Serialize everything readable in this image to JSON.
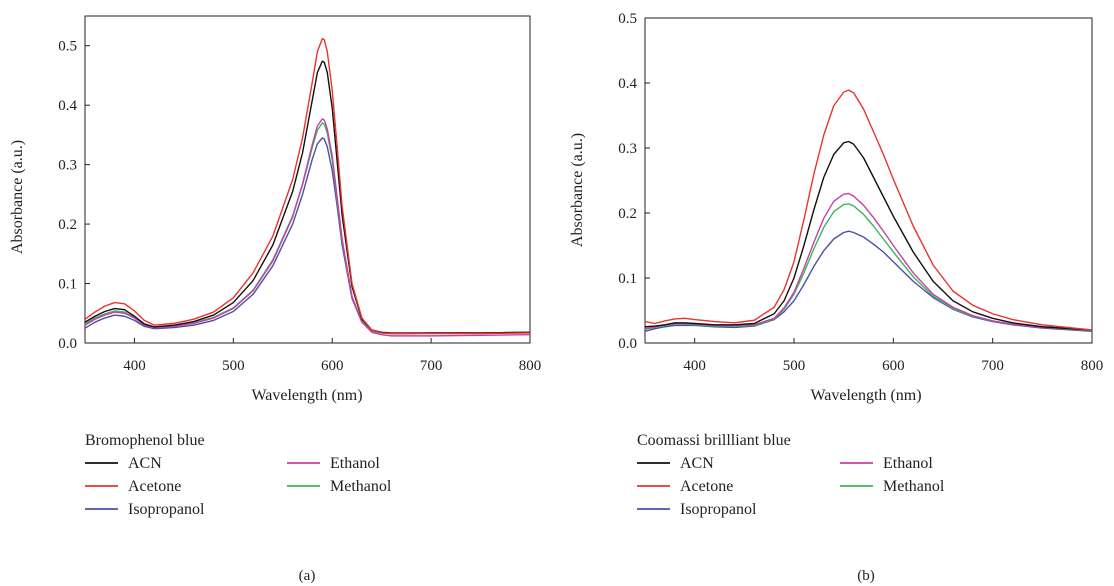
{
  "chart_data": [
    {
      "type": "line",
      "panel_label": "(a)",
      "legend_title": "Bromophenol blue",
      "xlabel": "Wavelength (nm)",
      "ylabel": "Absorbance (a.u.)",
      "xlim": [
        350,
        800
      ],
      "ylim": [
        0,
        0.55
      ],
      "xticks": [
        400,
        500,
        600,
        700,
        800
      ],
      "yticks": [
        0.0,
        0.1,
        0.2,
        0.3,
        0.4,
        0.5
      ],
      "ytick_labels": [
        "0.0",
        "0.1",
        "0.2",
        "0.3",
        "0.4",
        "0.5"
      ],
      "grid": false,
      "legend_position": "below",
      "x": [
        350,
        360,
        370,
        380,
        390,
        400,
        410,
        420,
        440,
        460,
        480,
        500,
        520,
        540,
        560,
        570,
        580,
        585,
        590,
        592,
        595,
        600,
        605,
        610,
        620,
        630,
        640,
        650,
        660,
        680,
        700,
        750,
        800
      ],
      "series": [
        {
          "name": "ACN",
          "color": "#111111",
          "values": [
            0.035,
            0.045,
            0.053,
            0.058,
            0.056,
            0.045,
            0.032,
            0.027,
            0.03,
            0.036,
            0.047,
            0.068,
            0.105,
            0.165,
            0.255,
            0.32,
            0.41,
            0.455,
            0.474,
            0.472,
            0.455,
            0.395,
            0.305,
            0.215,
            0.095,
            0.04,
            0.022,
            0.018,
            0.017,
            0.017,
            0.017,
            0.017,
            0.018
          ]
        },
        {
          "name": "Acetone",
          "color": "#e8342c",
          "values": [
            0.04,
            0.052,
            0.062,
            0.068,
            0.066,
            0.054,
            0.038,
            0.03,
            0.033,
            0.04,
            0.052,
            0.076,
            0.118,
            0.18,
            0.275,
            0.345,
            0.44,
            0.49,
            0.512,
            0.51,
            0.49,
            0.425,
            0.33,
            0.23,
            0.1,
            0.042,
            0.022,
            0.017,
            0.016,
            0.016,
            0.016,
            0.016,
            0.017
          ]
        },
        {
          "name": "Isopropanol",
          "color": "#4b4fa8",
          "values": [
            0.025,
            0.035,
            0.042,
            0.047,
            0.045,
            0.038,
            0.028,
            0.024,
            0.026,
            0.03,
            0.038,
            0.053,
            0.082,
            0.13,
            0.2,
            0.25,
            0.31,
            0.335,
            0.345,
            0.343,
            0.33,
            0.29,
            0.23,
            0.165,
            0.075,
            0.035,
            0.02,
            0.017,
            0.016,
            0.016,
            0.017,
            0.017,
            0.018
          ]
        },
        {
          "name": "Ethanol",
          "color": "#c740a6",
          "values": [
            0.03,
            0.04,
            0.047,
            0.052,
            0.05,
            0.042,
            0.03,
            0.026,
            0.028,
            0.033,
            0.042,
            0.058,
            0.088,
            0.138,
            0.212,
            0.268,
            0.335,
            0.365,
            0.377,
            0.375,
            0.36,
            0.315,
            0.245,
            0.175,
            0.078,
            0.035,
            0.018,
            0.014,
            0.012,
            0.012,
            0.012,
            0.013,
            0.014
          ]
        },
        {
          "name": "Methanol",
          "color": "#3cb55a",
          "values": [
            0.032,
            0.042,
            0.049,
            0.054,
            0.052,
            0.043,
            0.031,
            0.026,
            0.029,
            0.034,
            0.043,
            0.059,
            0.089,
            0.14,
            0.214,
            0.266,
            0.33,
            0.358,
            0.37,
            0.368,
            0.353,
            0.308,
            0.24,
            0.172,
            0.078,
            0.036,
            0.02,
            0.017,
            0.016,
            0.016,
            0.017,
            0.017,
            0.018
          ]
        }
      ]
    },
    {
      "type": "line",
      "panel_label": "(b)",
      "legend_title": "Coomassi brillliant blue",
      "xlabel": "Wavelength (nm)",
      "ylabel": "Absorbance (a.u.)",
      "xlim": [
        350,
        800
      ],
      "ylim": [
        0,
        0.5
      ],
      "xticks": [
        400,
        500,
        600,
        700,
        800
      ],
      "yticks": [
        0.0,
        0.1,
        0.2,
        0.3,
        0.4,
        0.5
      ],
      "ytick_labels": [
        "0.0",
        "0.1",
        "0.2",
        "0.3",
        "0.4",
        "0.5"
      ],
      "grid": false,
      "legend_position": "below",
      "x": [
        350,
        360,
        370,
        380,
        390,
        400,
        420,
        440,
        460,
        480,
        490,
        500,
        510,
        520,
        530,
        540,
        550,
        555,
        560,
        570,
        580,
        590,
        600,
        620,
        640,
        660,
        680,
        700,
        720,
        750,
        800
      ],
      "series": [
        {
          "name": "ACN",
          "color": "#111111",
          "values": [
            0.025,
            0.026,
            0.028,
            0.031,
            0.031,
            0.03,
            0.028,
            0.028,
            0.03,
            0.045,
            0.065,
            0.1,
            0.15,
            0.205,
            0.255,
            0.29,
            0.308,
            0.31,
            0.306,
            0.285,
            0.255,
            0.225,
            0.195,
            0.14,
            0.095,
            0.065,
            0.048,
            0.038,
            0.031,
            0.025,
            0.02
          ]
        },
        {
          "name": "Acetone",
          "color": "#e8342c",
          "values": [
            0.033,
            0.03,
            0.034,
            0.037,
            0.038,
            0.036,
            0.033,
            0.031,
            0.035,
            0.055,
            0.082,
            0.125,
            0.19,
            0.26,
            0.32,
            0.365,
            0.386,
            0.389,
            0.385,
            0.36,
            0.325,
            0.29,
            0.252,
            0.18,
            0.12,
            0.08,
            0.058,
            0.045,
            0.036,
            0.028,
            0.02
          ]
        },
        {
          "name": "Isopropanol",
          "color": "#4b4fa8",
          "values": [
            0.018,
            0.022,
            0.025,
            0.027,
            0.027,
            0.027,
            0.025,
            0.024,
            0.026,
            0.036,
            0.048,
            0.065,
            0.09,
            0.118,
            0.142,
            0.16,
            0.17,
            0.172,
            0.17,
            0.163,
            0.152,
            0.14,
            0.125,
            0.095,
            0.07,
            0.052,
            0.04,
            0.033,
            0.028,
            0.023,
            0.018
          ]
        },
        {
          "name": "Ethanol",
          "color": "#c740a6",
          "values": [
            0.022,
            0.025,
            0.028,
            0.03,
            0.03,
            0.029,
            0.027,
            0.027,
            0.028,
            0.038,
            0.054,
            0.078,
            0.115,
            0.155,
            0.192,
            0.218,
            0.229,
            0.23,
            0.226,
            0.212,
            0.193,
            0.172,
            0.15,
            0.108,
            0.075,
            0.055,
            0.042,
            0.034,
            0.029,
            0.024,
            0.02
          ]
        },
        {
          "name": "Methanol",
          "color": "#3cb55a",
          "values": [
            0.021,
            0.024,
            0.027,
            0.029,
            0.029,
            0.028,
            0.026,
            0.026,
            0.027,
            0.037,
            0.052,
            0.075,
            0.108,
            0.145,
            0.178,
            0.202,
            0.213,
            0.214,
            0.211,
            0.198,
            0.18,
            0.16,
            0.14,
            0.102,
            0.072,
            0.053,
            0.041,
            0.034,
            0.029,
            0.024,
            0.019
          ]
        }
      ]
    }
  ]
}
